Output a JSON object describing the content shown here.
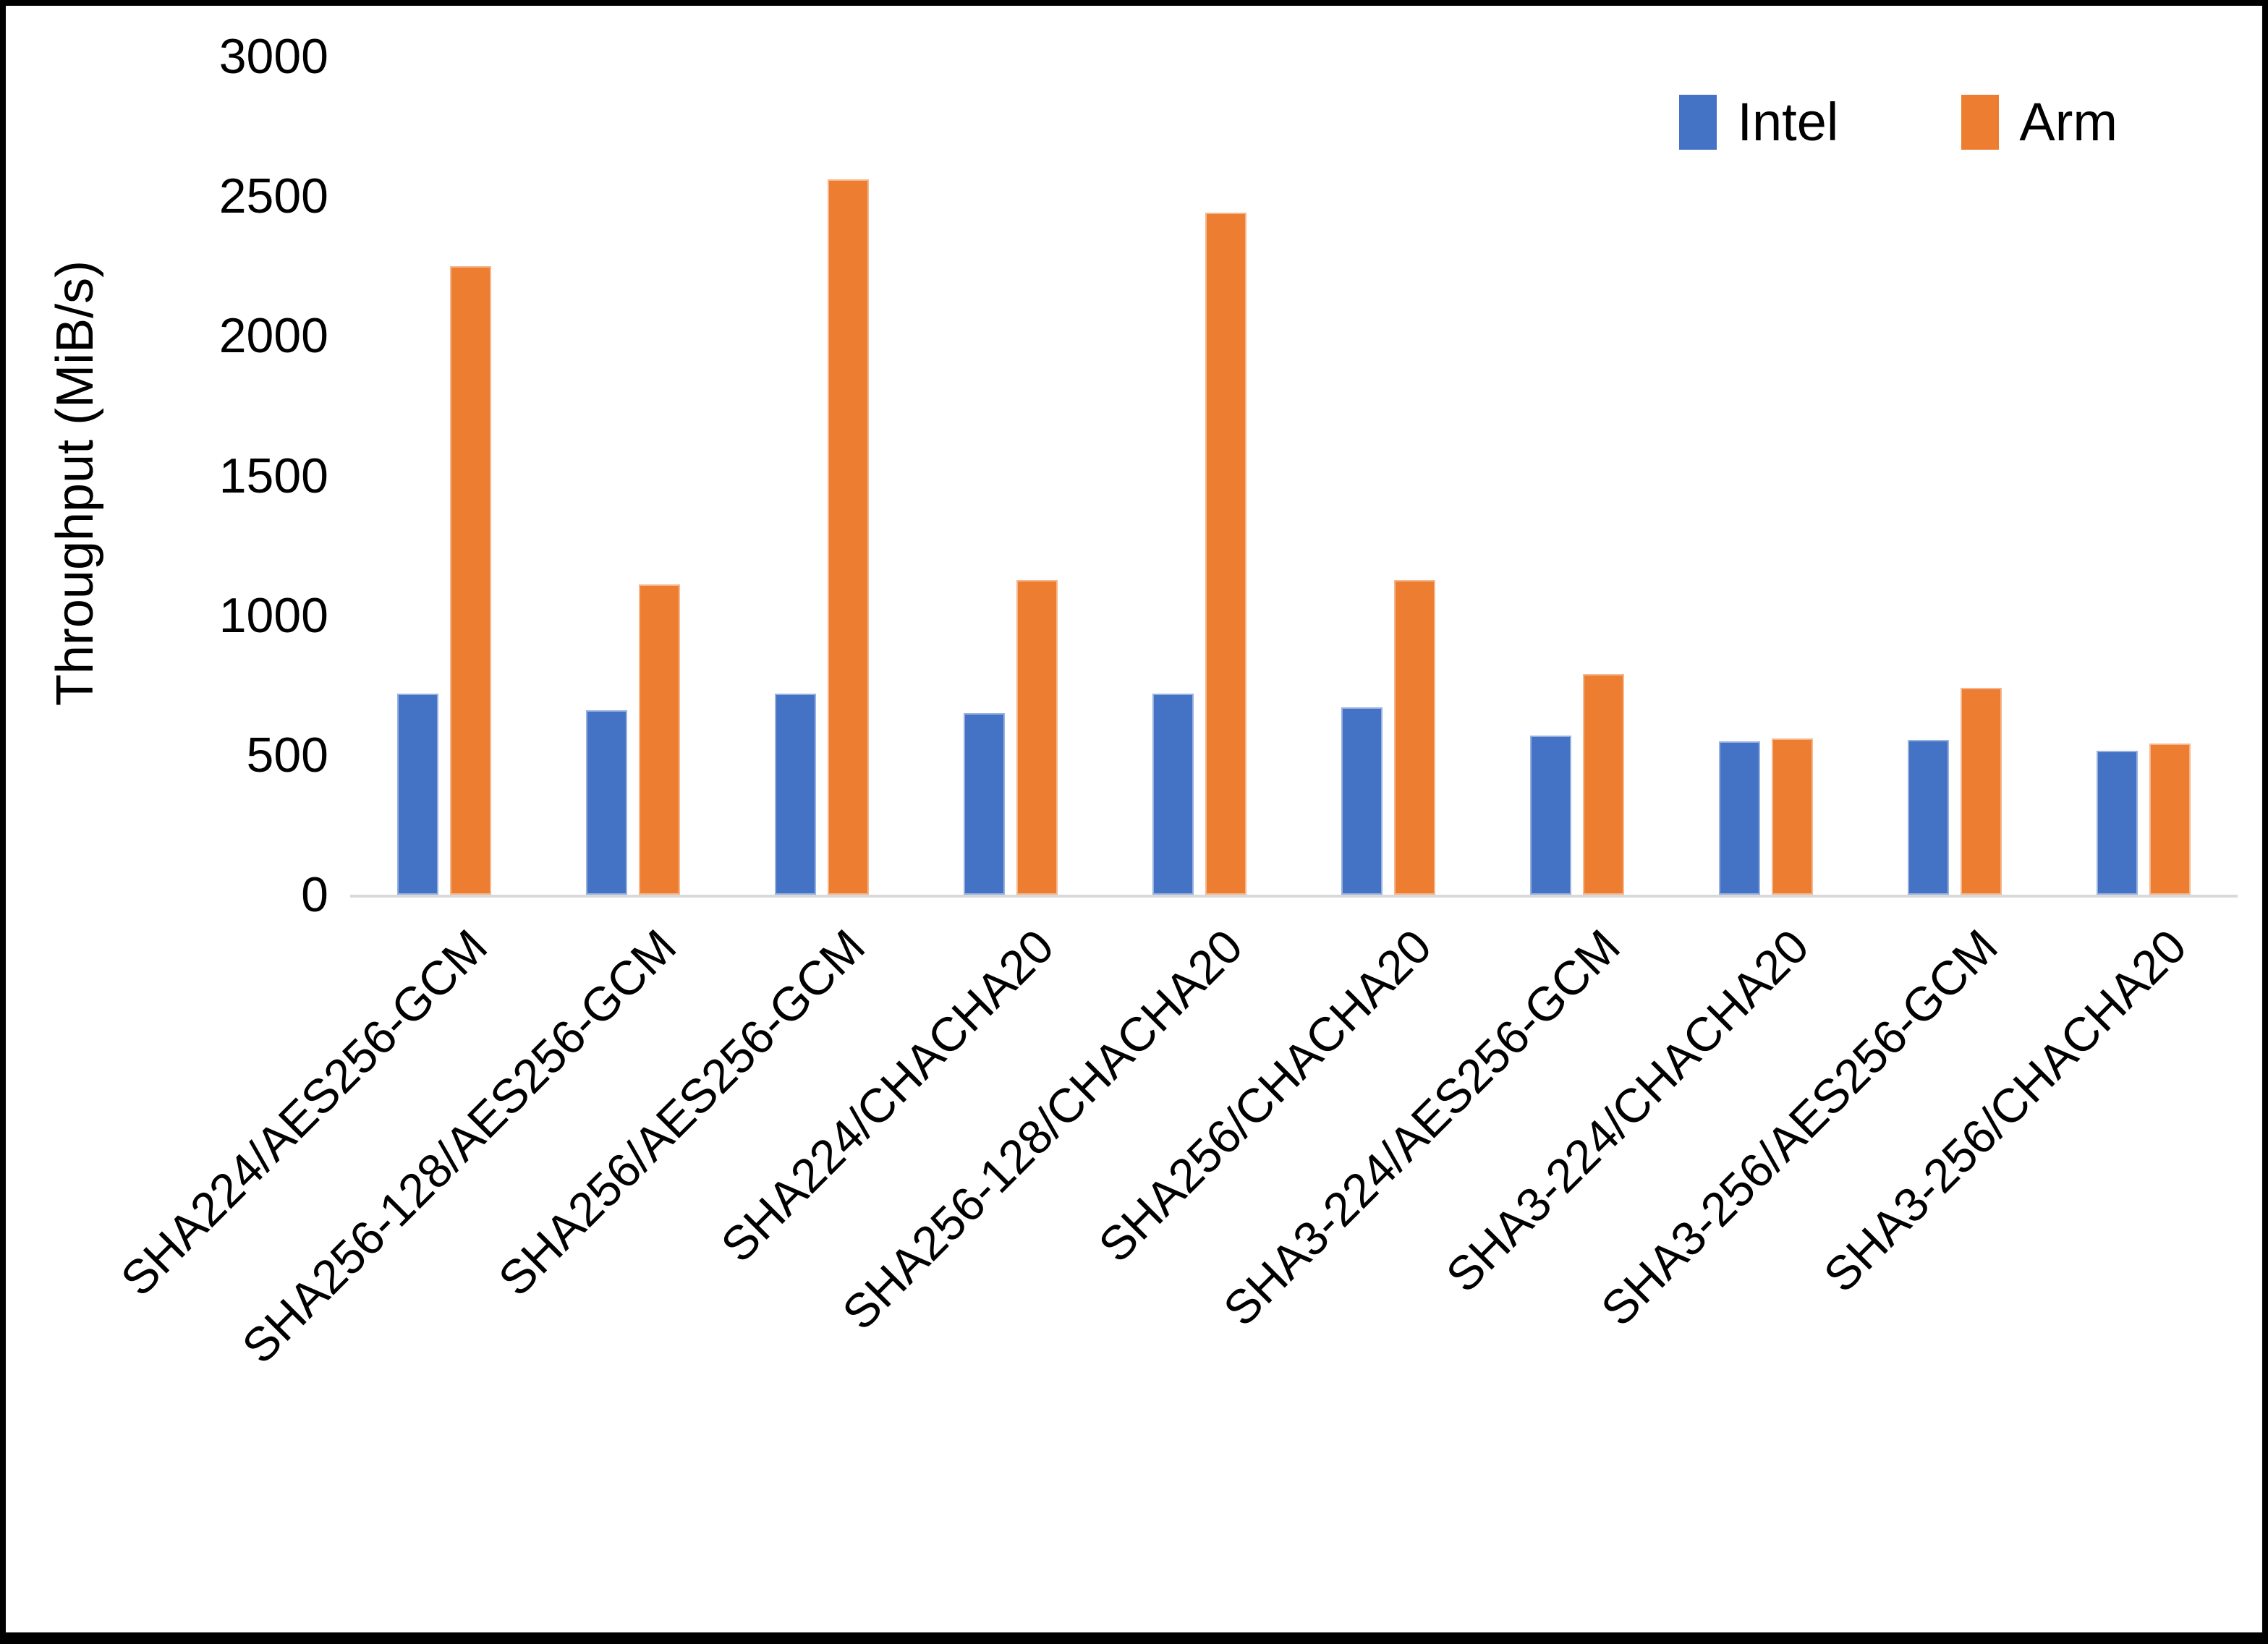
{
  "figure": {
    "background": "#ffffff",
    "border_color": "#000000"
  },
  "axis": {
    "line_color": "#d9d9d9",
    "text_color": "#000000"
  },
  "legend": {
    "position": "top-right",
    "items": [
      {
        "label": "Intel",
        "color": "#4472C4"
      },
      {
        "label": "Arm",
        "color": "#ED7D31"
      }
    ]
  },
  "chart_data": {
    "type": "bar",
    "title": "",
    "xlabel": "",
    "ylabel": "Throughput (MiB/s)",
    "ylim": [
      0,
      3000
    ],
    "yticks": [
      0,
      500,
      1000,
      1500,
      2000,
      2500,
      3000
    ],
    "grid": false,
    "legend_position": "top-right",
    "categories": [
      "SHA224/AES256-GCM",
      "SHA256-128/AES256-GCM",
      "SHA256/AES256-GCM",
      "SHA224/CHACHA20",
      "SHA256-128/CHACHA20",
      "SHA256/CHACHA20",
      "SHA3-224/AES256-GCM",
      "SHA3-224/CHACHA20",
      "SHA3-256/AES256-GCM",
      "SHA3-256/CHACHA20"
    ],
    "series": [
      {
        "name": "Intel",
        "color": "#4472C4",
        "values": [
          720,
          660,
          720,
          650,
          720,
          670,
          570,
          550,
          555,
          515
        ]
      },
      {
        "name": "Arm",
        "color": "#ED7D31",
        "values": [
          2250,
          1110,
          2560,
          1125,
          2440,
          1125,
          790,
          560,
          740,
          540
        ]
      }
    ]
  }
}
